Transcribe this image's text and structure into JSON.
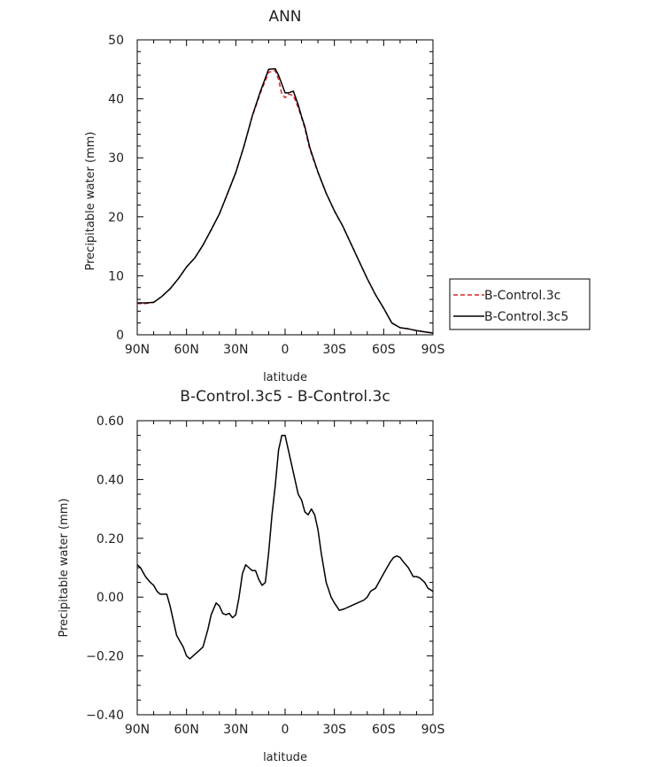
{
  "chart_data": [
    {
      "type": "line",
      "title": "ANN",
      "xlabel": "latitude",
      "ylabel": "Precipitable water (mm)",
      "xlim": [
        90,
        -90
      ],
      "ylim": [
        0,
        50
      ],
      "x_ticks": [
        90,
        60,
        30,
        0,
        -30,
        -60,
        -90
      ],
      "x_tick_labels": [
        "90N",
        "60N",
        "30N",
        "0",
        "30S",
        "60S",
        "90S"
      ],
      "y_ticks": [
        0,
        10,
        20,
        30,
        40,
        50
      ],
      "y_tick_labels": [
        "0",
        "10",
        "20",
        "30",
        "40",
        "50"
      ],
      "x": [
        90,
        85,
        80,
        75,
        70,
        65,
        60,
        55,
        50,
        45,
        40,
        35,
        30,
        25,
        20,
        15,
        10,
        6,
        4,
        2,
        0,
        -2,
        -5,
        -8,
        -10,
        -12,
        -15,
        -20,
        -25,
        -30,
        -35,
        -40,
        -45,
        -50,
        -55,
        -60,
        -65,
        -70,
        -75,
        -80,
        -85,
        -90
      ],
      "series": [
        {
          "name": "B-Control.3c",
          "style": "dashed",
          "color": "#d62728",
          "values": [
            5.3,
            5.3,
            5.5,
            6.5,
            7.8,
            9.5,
            11.5,
            13.0,
            15.2,
            17.8,
            20.5,
            24.0,
            27.5,
            32.0,
            37.0,
            41.0,
            44.5,
            44.8,
            43.3,
            40.8,
            40.2,
            40.8,
            40.6,
            38.5,
            36.8,
            35.0,
            31.5,
            27.5,
            24.0,
            21.0,
            18.5,
            15.5,
            12.5,
            9.5,
            6.8,
            4.5,
            2.0,
            1.2,
            1.0,
            0.7,
            0.5,
            0.3
          ]
        },
        {
          "name": "B-Control.3c5",
          "style": "solid",
          "color": "#000000",
          "values": [
            5.4,
            5.4,
            5.5,
            6.5,
            7.8,
            9.5,
            11.5,
            13.0,
            15.2,
            17.8,
            20.5,
            24.0,
            27.5,
            32.0,
            37.1,
            41.3,
            45.0,
            45.1,
            44.0,
            42.5,
            41.0,
            41.0,
            41.3,
            39.0,
            37.0,
            35.3,
            31.8,
            27.6,
            24.0,
            21.0,
            18.5,
            15.5,
            12.5,
            9.5,
            6.8,
            4.5,
            2.0,
            1.2,
            1.0,
            0.7,
            0.5,
            0.3
          ]
        }
      ],
      "legend": {
        "position": "right",
        "entries": [
          "B-Control.3c",
          "B-Control.3c5"
        ]
      }
    },
    {
      "type": "line",
      "title": "B-Control.3c5 - B-Control.3c",
      "xlabel": "latitude",
      "ylabel": "Precipitable water (mm)",
      "xlim": [
        90,
        -90
      ],
      "ylim": [
        -0.4,
        0.6
      ],
      "x_ticks": [
        90,
        60,
        30,
        0,
        -30,
        -60,
        -90
      ],
      "x_tick_labels": [
        "90N",
        "60N",
        "30N",
        "0",
        "30S",
        "60S",
        "90S"
      ],
      "y_ticks": [
        -0.4,
        -0.2,
        0,
        0.2,
        0.4,
        0.6
      ],
      "y_tick_labels": [
        "−0.40",
        "−0.20",
        "0.00",
        "0.20",
        "0.40",
        "0.60"
      ],
      "x": [
        90,
        88,
        85,
        82,
        80,
        78,
        76,
        74,
        72,
        70,
        68,
        66,
        64,
        62,
        60,
        58,
        56,
        54,
        50,
        47,
        45,
        42,
        40,
        38,
        36,
        34,
        32,
        30,
        28,
        26,
        24,
        22,
        20,
        18,
        16,
        14,
        12,
        10,
        8,
        6,
        4,
        2,
        0,
        -2,
        -4,
        -6,
        -8,
        -10,
        -12,
        -14,
        -16,
        -18,
        -20,
        -22,
        -25,
        -28,
        -30,
        -33,
        -36,
        -40,
        -44,
        -48,
        -50,
        -52,
        -55,
        -58,
        -60,
        -62,
        -64,
        -66,
        -68,
        -70,
        -72,
        -75,
        -78,
        -80,
        -82,
        -85,
        -87,
        -90
      ],
      "series": [
        {
          "name": "B-Control.3c5 - B-Control.3c",
          "style": "solid",
          "color": "#000000",
          "values": [
            0.11,
            0.1,
            0.07,
            0.05,
            0.04,
            0.02,
            0.01,
            0.01,
            0.01,
            -0.03,
            -0.08,
            -0.13,
            -0.15,
            -0.17,
            -0.2,
            -0.21,
            -0.2,
            -0.19,
            -0.17,
            -0.11,
            -0.06,
            -0.02,
            -0.03,
            -0.055,
            -0.06,
            -0.055,
            -0.07,
            -0.06,
            0.0,
            0.08,
            0.11,
            0.1,
            0.09,
            0.09,
            0.06,
            0.04,
            0.05,
            0.15,
            0.28,
            0.38,
            0.5,
            0.55,
            0.55,
            0.5,
            0.45,
            0.4,
            0.35,
            0.33,
            0.29,
            0.28,
            0.3,
            0.28,
            0.23,
            0.15,
            0.05,
            0.0,
            -0.02,
            -0.045,
            -0.04,
            -0.03,
            -0.02,
            -0.01,
            0.0,
            0.02,
            0.03,
            0.06,
            0.08,
            0.1,
            0.12,
            0.135,
            0.14,
            0.135,
            0.12,
            0.1,
            0.07,
            0.07,
            0.065,
            0.05,
            0.03,
            0.02
          ]
        }
      ]
    }
  ]
}
